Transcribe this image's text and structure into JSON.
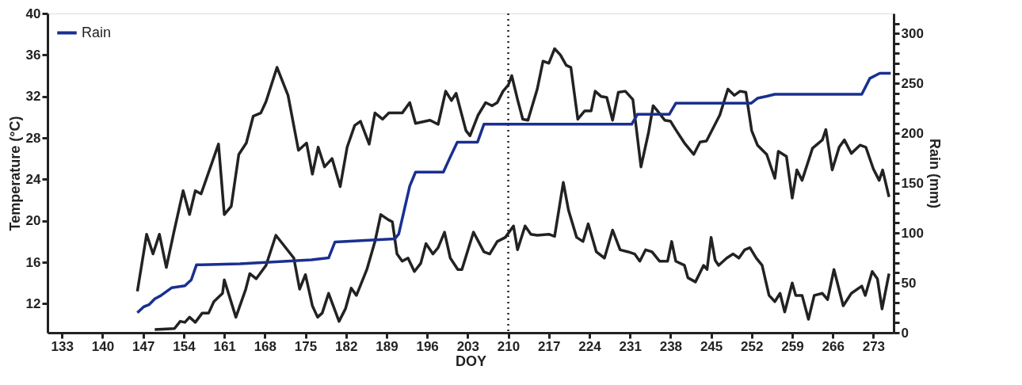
{
  "chart_data": {
    "type": "line",
    "xlabel": "DOY",
    "ylabel": "Temperature (°C)",
    "y2label": "Rain (mm)",
    "xlim": [
      130.5,
      276.5
    ],
    "xticks": [
      133,
      140,
      147,
      154,
      161,
      168,
      175,
      182,
      189,
      196,
      203,
      210,
      217,
      224,
      231,
      238,
      245,
      252,
      259,
      266,
      273
    ],
    "ylim": [
      9.2,
      40
    ],
    "yticks": [
      12,
      16,
      20,
      24,
      28,
      32,
      36,
      40
    ],
    "y2lim": [
      0,
      320
    ],
    "y2ticks": [
      0,
      {
        "value": 10,
        "label": null
      },
      {
        "value": 20,
        "label": null
      },
      {
        "value": 30,
        "label": null
      },
      {
        "value": 40,
        "label": null
      },
      50,
      {
        "value": 60,
        "label": null
      },
      {
        "value": 70,
        "label": null
      },
      {
        "value": 80,
        "label": null
      },
      {
        "value": 90,
        "label": null
      },
      100,
      {
        "value": 110,
        "label": null
      },
      {
        "value": 120,
        "label": null
      },
      {
        "value": 130,
        "label": null
      },
      {
        "value": 140,
        "label": null
      },
      150,
      {
        "value": 160,
        "label": null
      },
      {
        "value": 170,
        "label": null
      },
      {
        "value": 180,
        "label": null
      },
      {
        "value": 190,
        "label": null
      },
      200,
      {
        "value": 210,
        "label": null
      },
      {
        "value": 220,
        "label": null
      },
      {
        "value": 230,
        "label": null
      },
      {
        "value": 240,
        "label": null
      },
      250,
      {
        "value": 260,
        "label": null
      },
      {
        "value": 270,
        "label": null
      },
      {
        "value": 280,
        "label": null
      },
      {
        "value": 290,
        "label": null
      },
      300,
      {
        "value": 310,
        "label": null
      }
    ],
    "grid": false,
    "legend": "top left",
    "line_style": "solid",
    "ref_lines": [
      {
        "axis": "x",
        "value": 210,
        "line_style": "dotted",
        "color": "#222222"
      }
    ],
    "series": [
      {
        "color": "#222222",
        "x": [
          146,
          147.6,
          148.7,
          149.8,
          151,
          152.3,
          153.9,
          155,
          156,
          157,
          160,
          161,
          162.2,
          163.5,
          164.8,
          166,
          167.3,
          168.2,
          170.1,
          172,
          173.8,
          175.2,
          176.2,
          177.2,
          178.3,
          179.6,
          181,
          182.2,
          183.5,
          184.5,
          186,
          187,
          188.3,
          189.4,
          191.7,
          193,
          194,
          196.5,
          197.9,
          199.2,
          200.2,
          201,
          202.7,
          203.4,
          204.8,
          206.1,
          207.2,
          208.1,
          209.1,
          210,
          210.6,
          211.6,
          212.5,
          213.4,
          215,
          216,
          217,
          218,
          219,
          220,
          220.8,
          222,
          223.2,
          224.3,
          225,
          226,
          227,
          228,
          229,
          230.2,
          231.5,
          232.9,
          234.2,
          235,
          235.6,
          237,
          238,
          239,
          240.4,
          242,
          243.1,
          244.2,
          246.5,
          247.9,
          249,
          250,
          251,
          252,
          253,
          254.6,
          256,
          256.6,
          258,
          259,
          259.8,
          260.7,
          262.5,
          264.2,
          264.8,
          265.9,
          267.1,
          268,
          269.2,
          270.7,
          271.7,
          273,
          274,
          274.6,
          275.7
        ],
        "values": [
          13.2,
          18.7,
          16.8,
          18.7,
          15.5,
          18.9,
          22.9,
          20.6,
          22.9,
          22.6,
          27.4,
          20.6,
          21.4,
          26.4,
          27.5,
          30.1,
          30.4,
          31.5,
          34.8,
          32.1,
          26.8,
          27.5,
          24.5,
          27.1,
          25.2,
          26,
          23.3,
          27.1,
          29.2,
          29.6,
          27.4,
          30.4,
          29.8,
          30.4,
          30.4,
          31.4,
          29.4,
          29.7,
          29.3,
          32.5,
          31.6,
          32.3,
          28.7,
          28.2,
          30.2,
          31.4,
          31.1,
          31.4,
          32.5,
          33.1,
          34,
          31.7,
          29.8,
          29.7,
          32.7,
          35.4,
          35.2,
          36.6,
          36,
          35,
          34.8,
          29.8,
          30.6,
          30.6,
          32.5,
          32,
          31.9,
          29.7,
          32.4,
          32.5,
          31.7,
          25.2,
          28.5,
          31.1,
          30.7,
          29.7,
          29.6,
          28.7,
          27.5,
          26.4,
          27.6,
          27.7,
          30.2,
          32.7,
          32.1,
          32.5,
          32.4,
          28.7,
          27.3,
          26.4,
          24.1,
          26.7,
          26.2,
          22.2,
          24.9,
          23.9,
          27,
          27.8,
          28.8,
          24.9,
          27.1,
          27.8,
          26.5,
          27.3,
          27.1,
          25,
          23.9,
          24.9,
          22.3
        ]
      },
      {
        "color": "#222222",
        "x": [
          149,
          152.4,
          153.4,
          154.2,
          155,
          156,
          157.2,
          158.3,
          159.2,
          160.7,
          161,
          163,
          164.7,
          165.4,
          166.5,
          168.2,
          169.9,
          173,
          174,
          175,
          176.2,
          177.1,
          177.9,
          179,
          180.8,
          181.9,
          182.9,
          183.8,
          185.6,
          187,
          188,
          189.3,
          190,
          190.8,
          191.7,
          192.7,
          193.8,
          194.9,
          195.8,
          197,
          197.9,
          199,
          200,
          201.3,
          202,
          204,
          205.8,
          206.8,
          208.1,
          209.5,
          210.9,
          211.6,
          212.9,
          213.9,
          215,
          217,
          218,
          219.5,
          220.4,
          221.8,
          222.9,
          223.8,
          225.2,
          226.6,
          228,
          229.3,
          230.7,
          231.8,
          232.7,
          233.7,
          234.8,
          236.1,
          237.5,
          238.2,
          238.9,
          240.4,
          241,
          242.3,
          243.7,
          244.3,
          245,
          245.7,
          246.3,
          247.7,
          248.8,
          249.8,
          250.8,
          251.7,
          252.8,
          253.8,
          255,
          256,
          256.9,
          257.7,
          259,
          259.6,
          260.7,
          261.8,
          262.8,
          264.2,
          265.1,
          266.2,
          267.8,
          269.2,
          271,
          271.6,
          272.8,
          273.7,
          274.5,
          275.7
        ],
        "values": [
          9.5,
          9.6,
          10.3,
          10.2,
          10.7,
          10.2,
          11.1,
          11.1,
          12.2,
          13,
          14.3,
          10.7,
          13.4,
          14.9,
          14.4,
          15.7,
          18.6,
          16.4,
          13.4,
          14.8,
          11.8,
          10.7,
          11.1,
          13,
          10.3,
          11.5,
          13.5,
          12.8,
          15.3,
          18,
          20.6,
          20.1,
          19.9,
          16.8,
          16.1,
          16.4,
          15.1,
          15.9,
          17.8,
          16.8,
          17.4,
          18.9,
          16.4,
          15.3,
          15.3,
          18.9,
          17,
          16.8,
          18,
          18.4,
          19.5,
          17.2,
          19.5,
          18.7,
          18.6,
          18.7,
          18.5,
          23.7,
          21,
          18.4,
          18,
          19.7,
          17,
          16.4,
          19.1,
          17.2,
          17,
          16.8,
          16.1,
          17.2,
          17,
          16.1,
          16.1,
          18,
          16.1,
          15.7,
          14.5,
          14.1,
          15.7,
          15.3,
          18.4,
          16.2,
          15.7,
          16.4,
          16.8,
          16.4,
          17.2,
          17.4,
          16.4,
          15.7,
          12.8,
          12.2,
          13,
          11.2,
          14,
          12.8,
          12.8,
          10.5,
          12.8,
          13,
          12.4,
          15.3,
          11.8,
          13,
          13.7,
          12.8,
          15.1,
          14.4,
          11.5,
          14.9
        ]
      },
      {
        "name": "Rain",
        "color": "#1a2f8f",
        "axis": "y2",
        "x": [
          146,
          147.1,
          148,
          149,
          150,
          151.9,
          154.2,
          155.3,
          156.2,
          163.7,
          169.9,
          176,
          179,
          180.1,
          190.4,
          191.1,
          193,
          194,
          198.8,
          199.9,
          201.2,
          204.7,
          205.8,
          231.3,
          232.3,
          237.8,
          238.9,
          251.9,
          253,
          254.6,
          256,
          271,
          272.4,
          274.1,
          276
        ],
        "values": [
          20,
          26,
          28,
          34,
          37,
          45,
          47,
          53,
          68,
          69,
          71,
          73,
          75,
          91,
          94,
          99,
          147,
          161,
          161,
          175,
          191,
          191,
          209,
          209,
          219,
          219,
          230,
          230,
          235,
          237,
          239,
          239,
          255,
          260,
          260
        ]
      }
    ]
  }
}
